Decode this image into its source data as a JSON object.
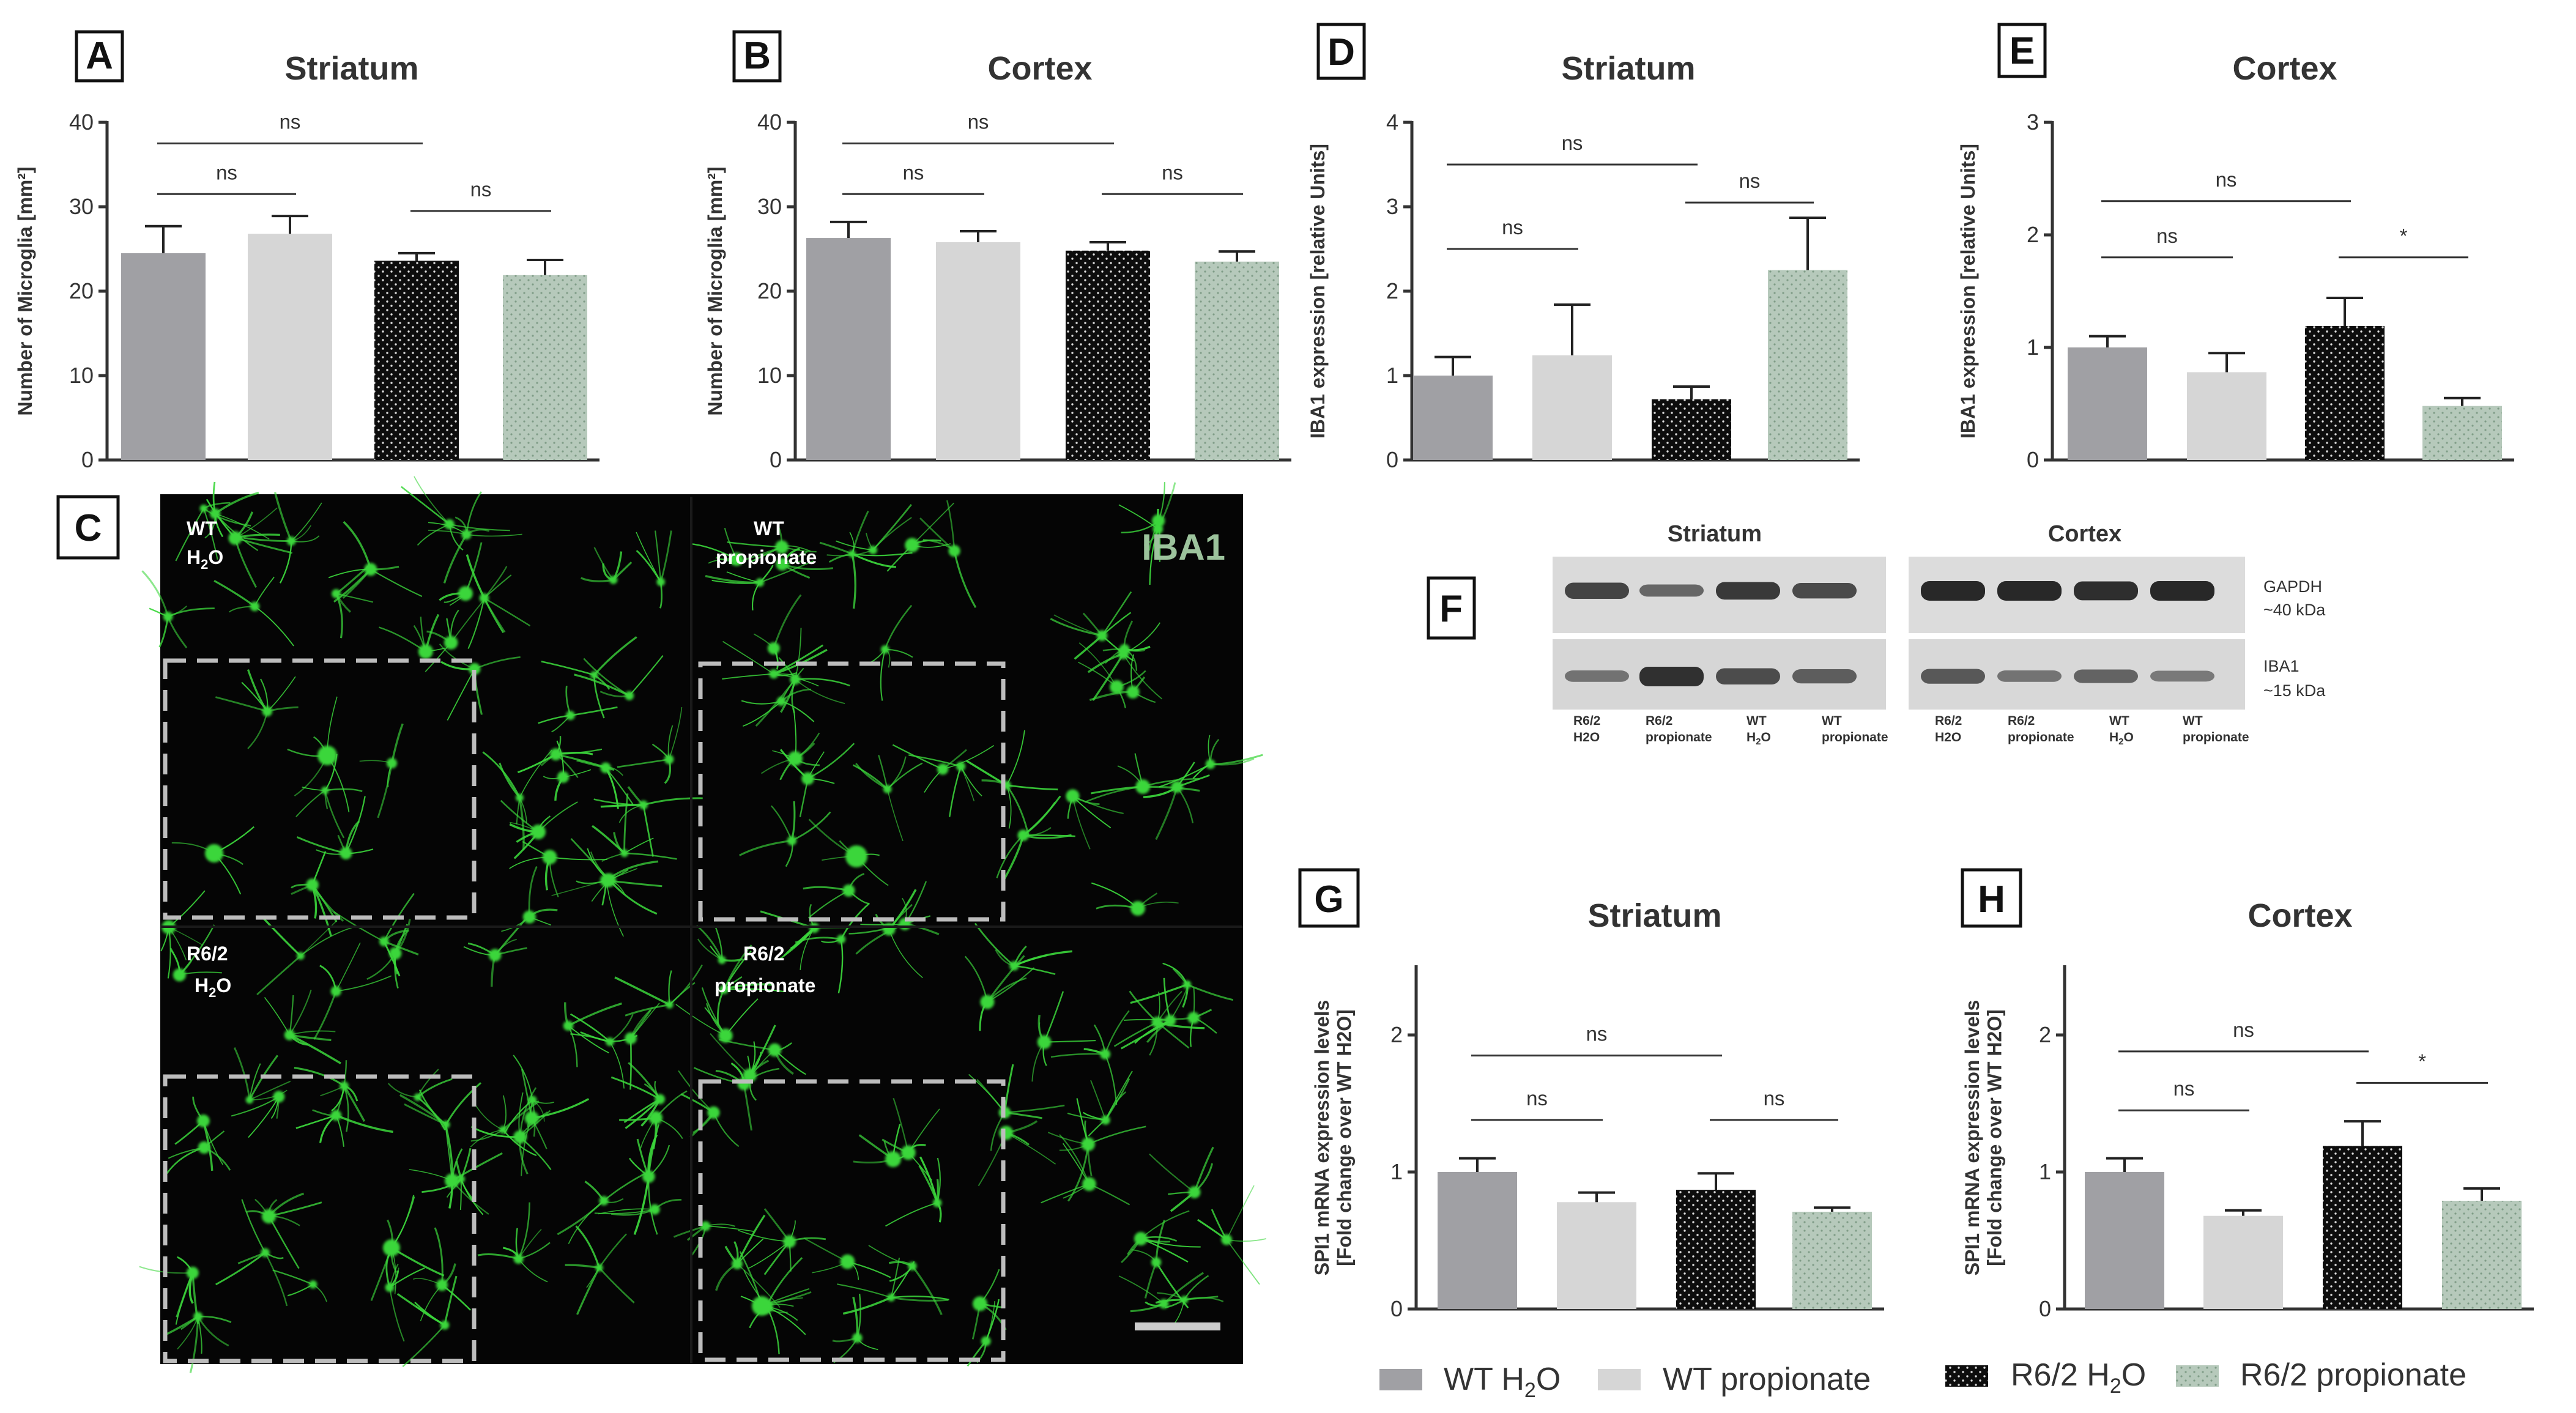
{
  "colors": {
    "wt_h2o": "#a0a0a4",
    "wt_propionate": "#d6d6d6",
    "r62_h2o": "#0d0d0d",
    "r62_propionate": "#b6c9bb",
    "fluorescence": "#3bd63b"
  },
  "legend": [
    {
      "label": "WT H",
      "sub": "2",
      "suffix": "O",
      "style": "wt_h2o"
    },
    {
      "label": "WT propionate",
      "sub": "",
      "suffix": "",
      "style": "wt_propionate"
    },
    {
      "label": "R6/2 H",
      "sub": "2",
      "suffix": "O",
      "style": "r62_h2o"
    },
    {
      "label": "R6/2 propionate",
      "sub": "",
      "suffix": "",
      "style": "r62_propionate"
    }
  ],
  "chart_data": [
    {
      "panel": "A",
      "type": "bar",
      "title": "Striatum",
      "ylabel": "Number of Microglia [mm²]",
      "ylim": [
        0,
        40
      ],
      "yticks": [
        0,
        10,
        20,
        30,
        40
      ],
      "values": [
        24.5,
        26.8,
        23.6,
        21.9
      ],
      "errors": [
        3.2,
        2.1,
        0.9,
        1.8
      ],
      "comparisons": [
        {
          "a": 0,
          "b": 1,
          "label": "ns",
          "y": 31.5
        },
        {
          "a": 2,
          "b": 3,
          "label": "ns",
          "y": 29.5
        },
        {
          "a": 0,
          "b": 2,
          "label": "ns",
          "y": 37.5
        }
      ]
    },
    {
      "panel": "B",
      "type": "bar",
      "title": "Cortex",
      "ylabel": "Number of Microglia [mm²]",
      "ylim": [
        0,
        40
      ],
      "yticks": [
        0,
        10,
        20,
        30,
        40
      ],
      "values": [
        26.3,
        25.8,
        24.8,
        23.5
      ],
      "errors": [
        1.9,
        1.3,
        1.0,
        1.2
      ],
      "comparisons": [
        {
          "a": 0,
          "b": 1,
          "label": "ns",
          "y": 31.5
        },
        {
          "a": 2,
          "b": 3,
          "label": "ns",
          "y": 31.5
        },
        {
          "a": 0,
          "b": 2,
          "label": "ns",
          "y": 37.5
        }
      ]
    },
    {
      "panel": "D",
      "type": "bar",
      "title": "Striatum",
      "ylabel": "IBA1 expression [relative Units]",
      "ylim": [
        0,
        4
      ],
      "yticks": [
        0,
        1,
        2,
        3,
        4
      ],
      "values": [
        1.0,
        1.24,
        0.72,
        2.25
      ],
      "errors": [
        0.22,
        0.6,
        0.15,
        0.62
      ],
      "comparisons": [
        {
          "a": 0,
          "b": 1,
          "label": "ns",
          "y": 2.5
        },
        {
          "a": 2,
          "b": 3,
          "label": "ns",
          "y": 3.05
        },
        {
          "a": 0,
          "b": 2,
          "label": "ns",
          "y": 3.5
        }
      ]
    },
    {
      "panel": "E",
      "type": "bar",
      "title": "Cortex",
      "ylabel": "IBA1 expression [relative Units]",
      "ylim": [
        0,
        3
      ],
      "yticks": [
        0,
        1,
        2,
        3
      ],
      "values": [
        1.0,
        0.78,
        1.19,
        0.48
      ],
      "errors": [
        0.1,
        0.17,
        0.25,
        0.07
      ],
      "comparisons": [
        {
          "a": 0,
          "b": 1,
          "label": "ns",
          "y": 1.8
        },
        {
          "a": 2,
          "b": 3,
          "label": "*",
          "y": 1.8
        },
        {
          "a": 0,
          "b": 2,
          "label": "ns",
          "y": 2.3
        }
      ]
    },
    {
      "panel": "G",
      "type": "bar",
      "title": "Striatum",
      "ylabel": "SPI1 mRNA expression levels [Fold change over WT H2O]",
      "ylim": [
        0,
        2.5
      ],
      "yticks": [
        0,
        1,
        2
      ],
      "values": [
        1.0,
        0.78,
        0.87,
        0.71
      ],
      "errors": [
        0.1,
        0.07,
        0.12,
        0.03
      ],
      "comparisons": [
        {
          "a": 0,
          "b": 1,
          "label": "ns",
          "y": 1.38
        },
        {
          "a": 2,
          "b": 3,
          "label": "ns",
          "y": 1.38
        },
        {
          "a": 0,
          "b": 2,
          "label": "ns",
          "y": 1.85
        }
      ]
    },
    {
      "panel": "H",
      "type": "bar",
      "title": "Cortex",
      "ylabel": "SPI1 mRNA expression levels [Fold change over WT H2O]",
      "ylim": [
        0,
        2.5
      ],
      "yticks": [
        0,
        1,
        2
      ],
      "values": [
        1.0,
        0.68,
        1.19,
        0.79
      ],
      "errors": [
        0.1,
        0.04,
        0.18,
        0.09
      ],
      "comparisons": [
        {
          "a": 0,
          "b": 1,
          "label": "ns",
          "y": 1.45
        },
        {
          "a": 2,
          "b": 3,
          "label": "*",
          "y": 1.65
        },
        {
          "a": 0,
          "b": 2,
          "label": "ns",
          "y": 1.88
        }
      ]
    }
  ],
  "micrograph": {
    "panel": "C",
    "stain": "IBA1",
    "quadrants": [
      {
        "line1": "WT",
        "line2a": "H",
        "line2sub": "2",
        "line2b": "O"
      },
      {
        "line1": "WT",
        "line2a": "propionate",
        "line2sub": "",
        "line2b": ""
      },
      {
        "line1": "R6/2",
        "line2a": "H",
        "line2sub": "2",
        "line2b": "O"
      },
      {
        "line1": "R6/2",
        "line2a": "propionate",
        "line2sub": "",
        "line2b": ""
      }
    ]
  },
  "blot": {
    "panel": "F",
    "groups": [
      {
        "title": "Striatum",
        "lanes": [
          {
            "l1": "R6/2",
            "l2": "H2O"
          },
          {
            "l1": "R6/2",
            "l2": "propionate"
          },
          {
            "l1": "WT",
            "l2": "H",
            "l2sub": "2",
            "l2b": "O"
          },
          {
            "l1": "WT",
            "l2": "propionate"
          }
        ],
        "gapdh": [
          0.75,
          0.45,
          0.85,
          0.7
        ],
        "iba1": [
          0.4,
          1.0,
          0.75,
          0.6
        ]
      },
      {
        "title": "Cortex",
        "lanes": [
          {
            "l1": "R6/2",
            "l2": "H2O"
          },
          {
            "l1": "R6/2",
            "l2": "propionate"
          },
          {
            "l1": "WT",
            "l2": "H",
            "l2sub": "2",
            "l2b": "O"
          },
          {
            "l1": "WT",
            "l2": "propionate"
          }
        ],
        "gapdh": [
          1.0,
          1.0,
          0.95,
          1.0
        ],
        "iba1": [
          0.65,
          0.4,
          0.55,
          0.35
        ]
      }
    ],
    "markers": [
      {
        "name": "GAPDH",
        "size": "~40 kDa"
      },
      {
        "name": "IBA1",
        "size": "~15 kDa"
      }
    ]
  }
}
